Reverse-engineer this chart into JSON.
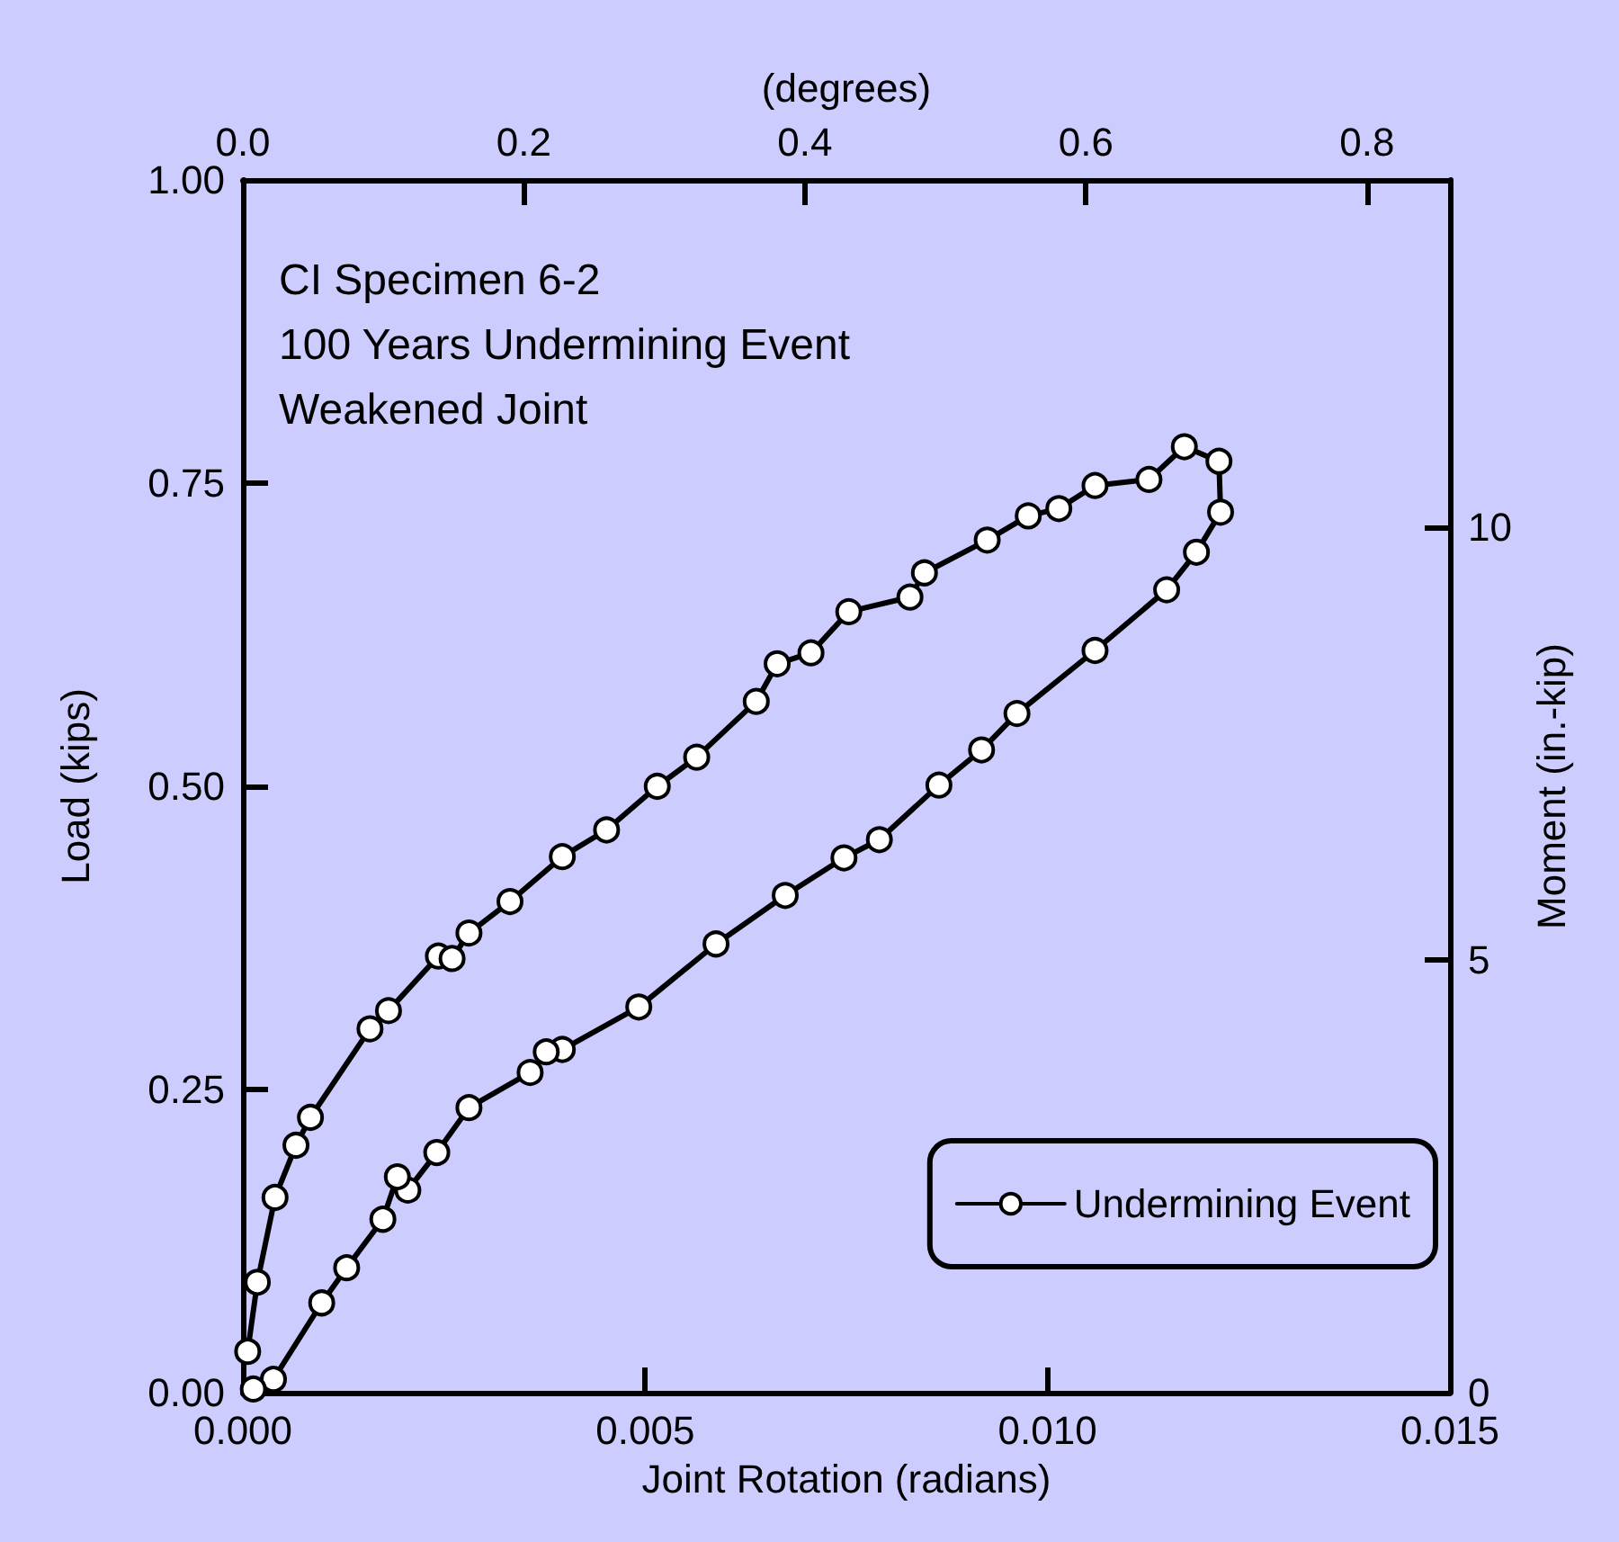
{
  "chart_data": {
    "type": "line",
    "xlabel": "Joint Rotation (radians)",
    "ylabel": "Load (kips)",
    "y2label": "Moment (in.-kip)",
    "x2label": "(degrees)",
    "annotations": [
      "CI Specimen 6-2",
      "100 Years Undermining Event",
      "Weakened Joint"
    ],
    "xlim": [
      0,
      0.015
    ],
    "xticks": [
      {
        "value": 0,
        "label": "0.000"
      },
      {
        "value": 0.005,
        "label": "0.005"
      },
      {
        "value": 0.01,
        "label": "0.010"
      },
      {
        "value": 0.015,
        "label": "0.015"
      }
    ],
    "ylim": [
      0,
      1
    ],
    "yticks": [
      {
        "value": 0,
        "label": "0.00"
      },
      {
        "value": 0.25,
        "label": "0.25"
      },
      {
        "value": 0.5,
        "label": "0.50"
      },
      {
        "value": 0.75,
        "label": "0.75"
      },
      {
        "value": 1,
        "label": "1.00"
      }
    ],
    "y2lim": [
      0,
      14.01
    ],
    "y2ticks": [
      0,
      5,
      10
    ],
    "x2lim": [
      0,
      0.859
    ],
    "x2ticks": [
      {
        "value": 0,
        "label": "0.0"
      },
      {
        "value": 0.2,
        "label": "0.2"
      },
      {
        "value": 0.4,
        "label": "0.4"
      },
      {
        "value": 0.6,
        "label": "0.6"
      },
      {
        "value": 0.8,
        "label": "0.8"
      }
    ],
    "grid": false,
    "legend": "bottom right",
    "marker": "circle",
    "line_style": "solid",
    "series": [
      {
        "name": "Undermining Event",
        "color": "#000000",
        "x": [
          6e-05,
          0.00018,
          0.0004,
          0.00066,
          0.00084,
          0.00158,
          0.00181,
          0.00243,
          0.0026,
          0.00281,
          0.00332,
          0.00397,
          0.00452,
          0.00515,
          0.00564,
          0.00638,
          0.00664,
          0.00706,
          0.00753,
          0.00829,
          0.00847,
          0.00925,
          0.00976,
          0.01014,
          0.01059,
          0.01126,
          0.0117,
          0.01213,
          0.01215,
          0.01185,
          0.01148,
          0.01059,
          0.00962,
          0.00918,
          0.00865,
          0.00791,
          0.00747,
          0.00674,
          0.00588,
          0.00492,
          0.00397,
          0.00377,
          0.00357,
          0.00281,
          0.00241,
          0.00205,
          0.00192,
          0.00174,
          0.00129,
          0.00098,
          0.00038,
          0.00013
        ],
        "values": [
          0.034,
          0.091,
          0.161,
          0.204,
          0.227,
          0.3,
          0.315,
          0.36,
          0.358,
          0.379,
          0.405,
          0.442,
          0.464,
          0.5,
          0.524,
          0.57,
          0.601,
          0.61,
          0.644,
          0.656,
          0.676,
          0.703,
          0.723,
          0.729,
          0.748,
          0.753,
          0.78,
          0.768,
          0.726,
          0.693,
          0.662,
          0.612,
          0.56,
          0.53,
          0.501,
          0.456,
          0.441,
          0.41,
          0.37,
          0.318,
          0.283,
          0.281,
          0.264,
          0.235,
          0.198,
          0.167,
          0.178,
          0.143,
          0.103,
          0.074,
          0.011,
          0.003
        ]
      }
    ]
  }
}
